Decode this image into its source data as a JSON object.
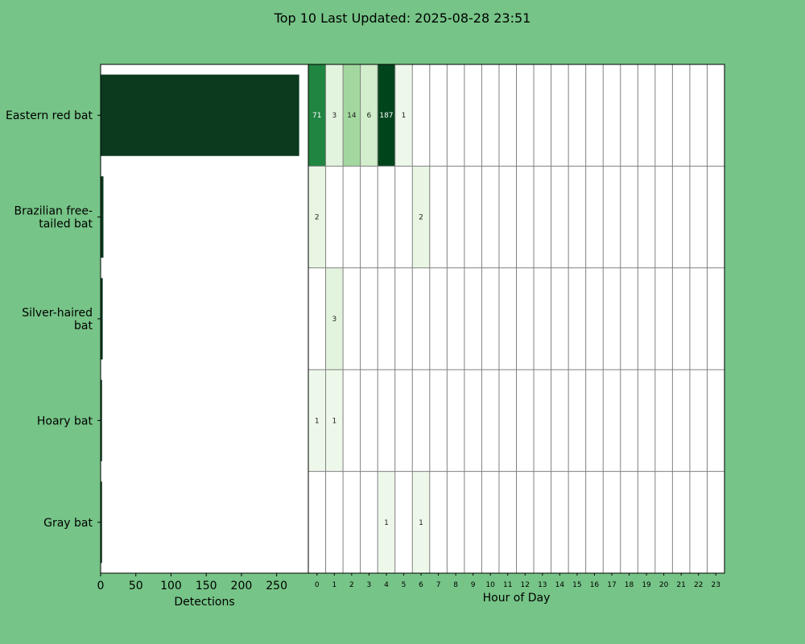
{
  "title": "Top 10 Last Updated: 2025-08-28 23:51",
  "colors": {
    "background": "#76c487",
    "bar": "#0b3a1f",
    "highlight_tick": "#ffff66",
    "grid": "#808080"
  },
  "chart_data": [
    {
      "type": "bar",
      "orientation": "horizontal",
      "categories": [
        "Eastern red bat",
        "Brazilian free-\ntailed bat",
        "Silver-haired\nbat",
        "Hoary bat",
        "Gray bat"
      ],
      "values": [
        282,
        4,
        3,
        2,
        2
      ],
      "xlabel": "Detections",
      "xlim": [
        0,
        295
      ],
      "xticks": [
        0,
        50,
        100,
        150,
        200,
        250
      ]
    },
    {
      "type": "heatmap",
      "xlabel": "Hour of Day",
      "hours": [
        0,
        1,
        2,
        3,
        4,
        5,
        6,
        7,
        8,
        9,
        10,
        11,
        12,
        13,
        14,
        15,
        16,
        17,
        18,
        19,
        20,
        21,
        22,
        23
      ],
      "highlight_hour": 23,
      "rows": [
        {
          "species": "Eastern red bat",
          "counts": {
            "0": 71,
            "1": 3,
            "2": 14,
            "3": 6,
            "4": 187,
            "5": 1
          }
        },
        {
          "species": "Brazilian free-tailed bat",
          "counts": {
            "0": 2,
            "6": 2
          }
        },
        {
          "species": "Silver-haired bat",
          "counts": {
            "1": 3
          }
        },
        {
          "species": "Hoary bat",
          "counts": {
            "0": 1,
            "1": 1
          }
        },
        {
          "species": "Gray bat",
          "counts": {
            "4": 1,
            "6": 1
          }
        }
      ]
    }
  ]
}
